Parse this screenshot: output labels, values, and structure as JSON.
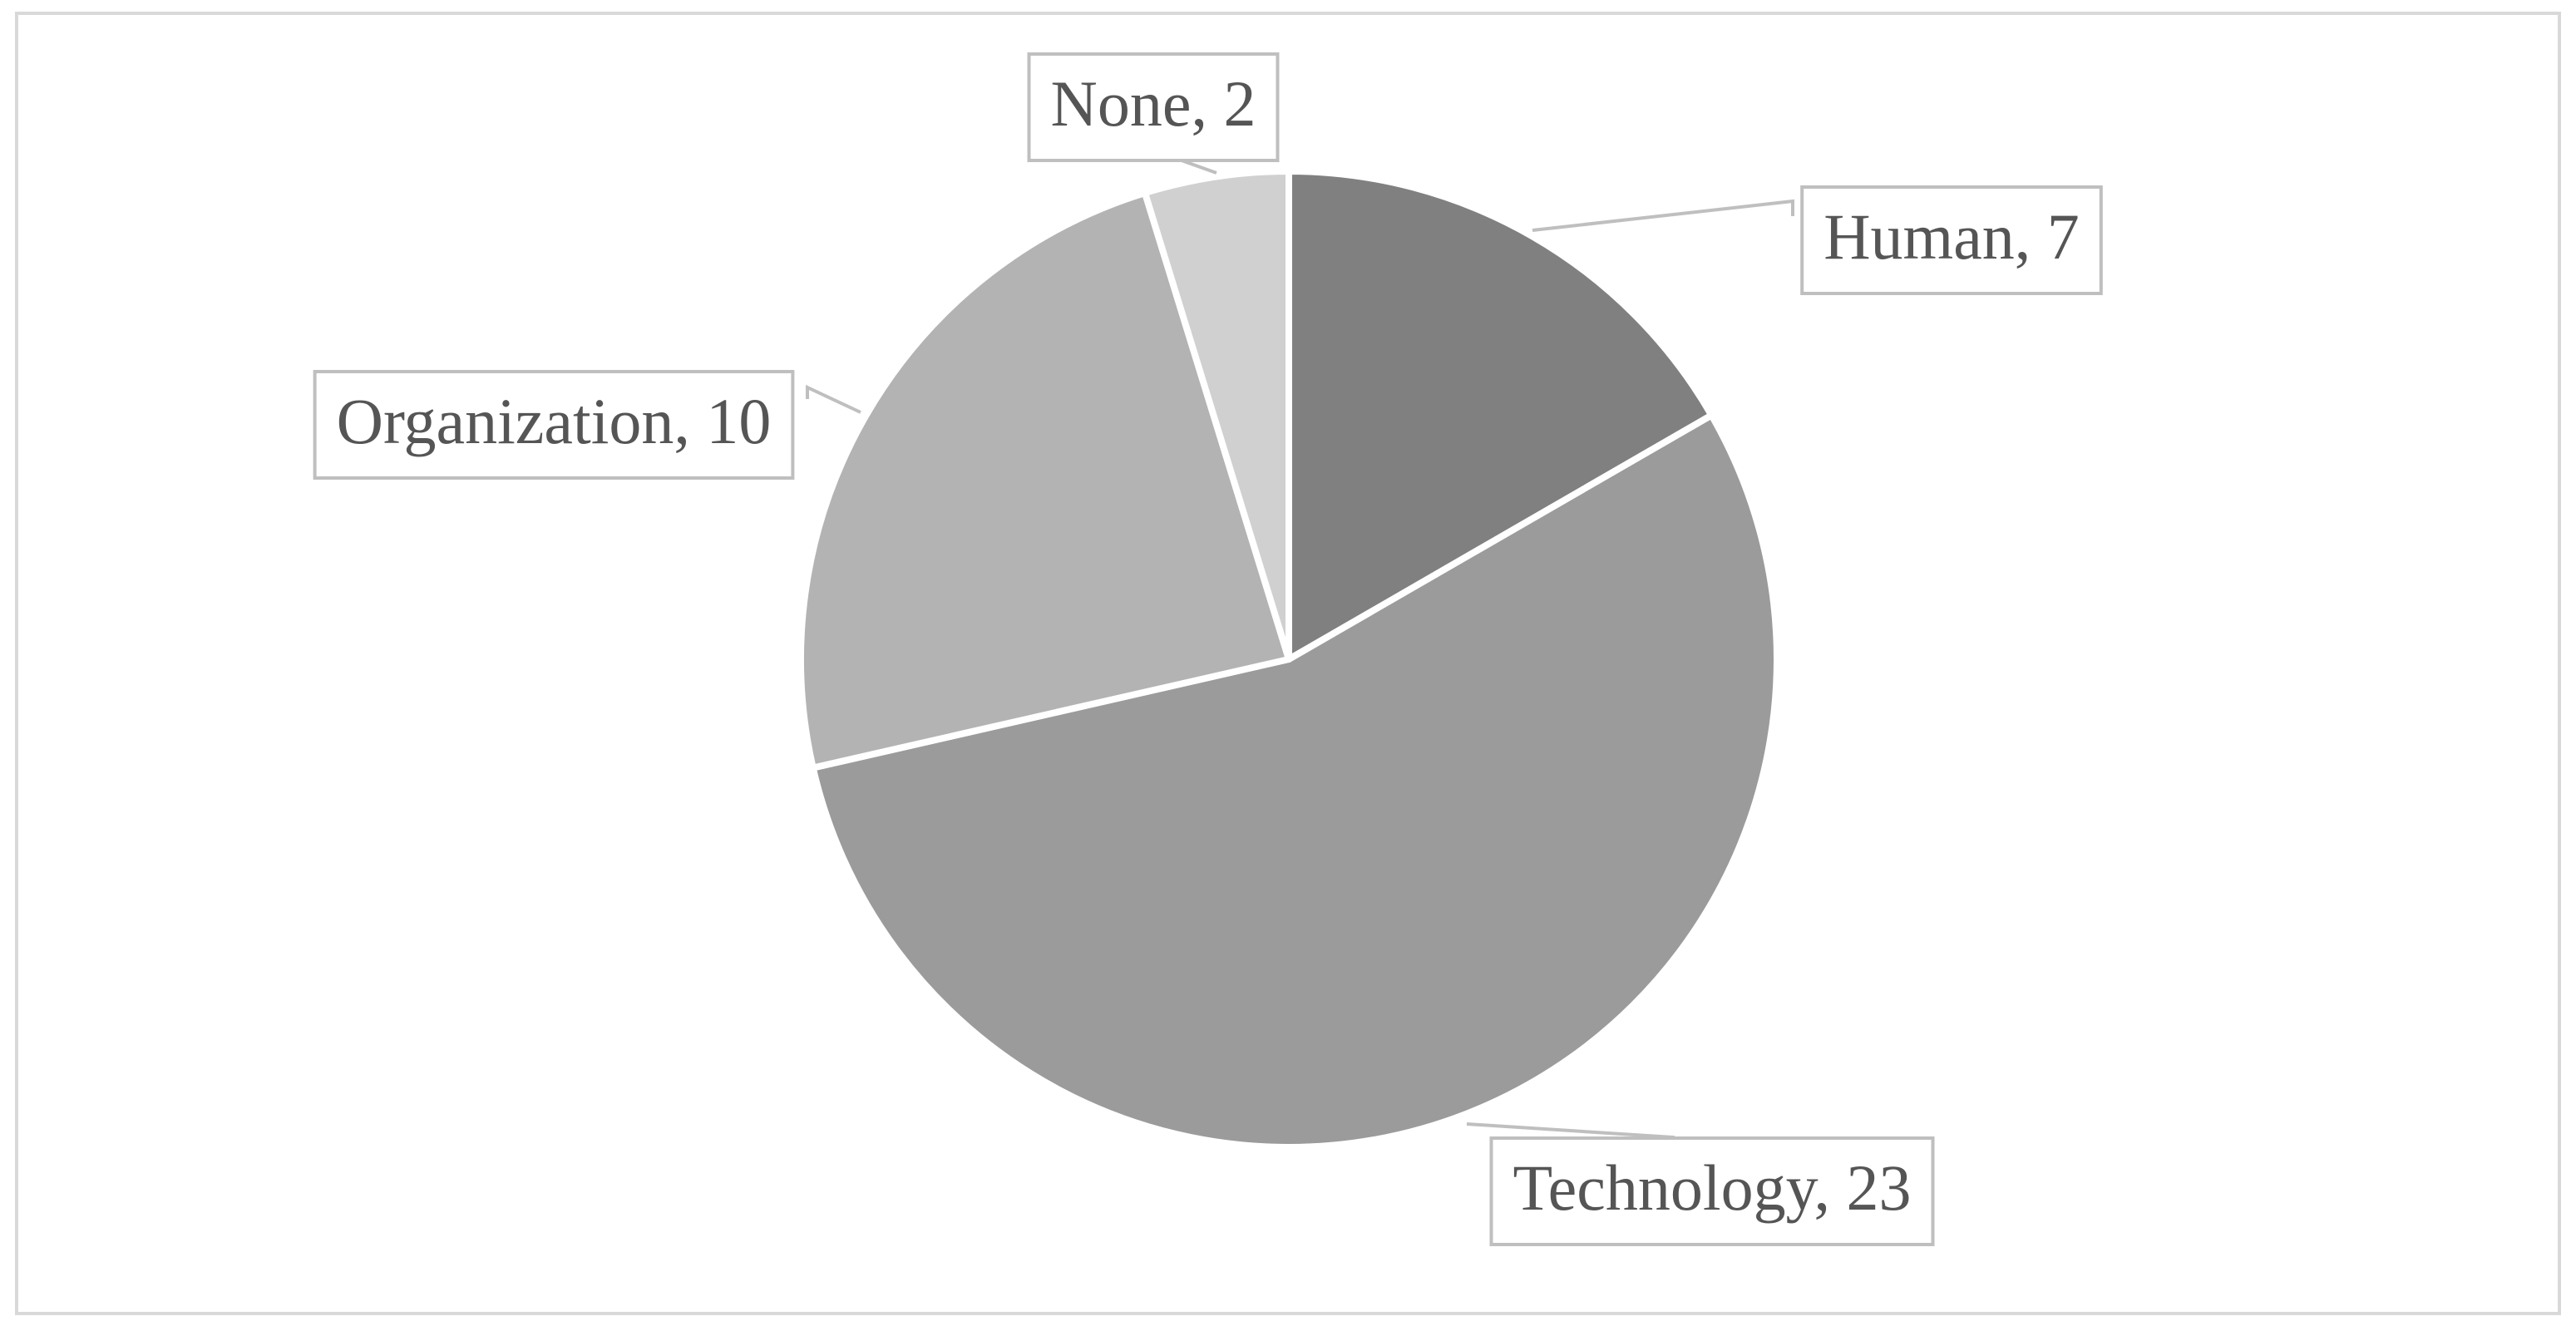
{
  "chart_data": {
    "type": "pie",
    "categories": [
      "Human",
      "Technology",
      "Organization",
      "None"
    ],
    "values": [
      7,
      23,
      10,
      2
    ],
    "value_labels": [
      "Human, 7",
      "Technology, 23",
      "Organization, 10",
      "None, 2"
    ],
    "colors": [
      "#808080",
      "#9b9b9b",
      "#b3b3b3",
      "#d0d0d0"
    ],
    "start_angle": 0,
    "direction": "clockwise"
  }
}
